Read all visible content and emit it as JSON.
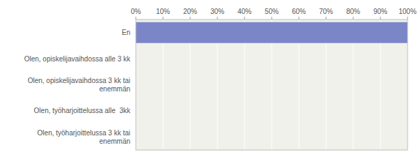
{
  "chart_data": {
    "type": "bar",
    "orientation": "horizontal",
    "categories": [
      "Olen, työharjoittelussa 3 kk tai\nenemmän",
      "Olen, työharjoittelussa alle  3kk",
      "Olen, opiskelijavaihdossa 3 kk tai\nenemmän",
      "Olen, opiskelijavaihdossa alle 3 kk",
      "En"
    ],
    "values": [
      0,
      0,
      0,
      0,
      100
    ],
    "color": "#7b86c8",
    "xlim": [
      0,
      100
    ],
    "xticks": [
      {
        "value": 0,
        "label": "0%"
      },
      {
        "value": 10,
        "label": "10%"
      },
      {
        "value": 20,
        "label": "20%"
      },
      {
        "value": 30,
        "label": "30%"
      },
      {
        "value": 40,
        "label": "40%"
      },
      {
        "value": 50,
        "label": "50%"
      },
      {
        "value": 60,
        "label": "60%"
      },
      {
        "value": 70,
        "label": "70%"
      },
      {
        "value": 80,
        "label": "80%"
      },
      {
        "value": 90,
        "label": "90%"
      },
      {
        "value": 100,
        "label": "100%"
      }
    ],
    "grid": true
  }
}
